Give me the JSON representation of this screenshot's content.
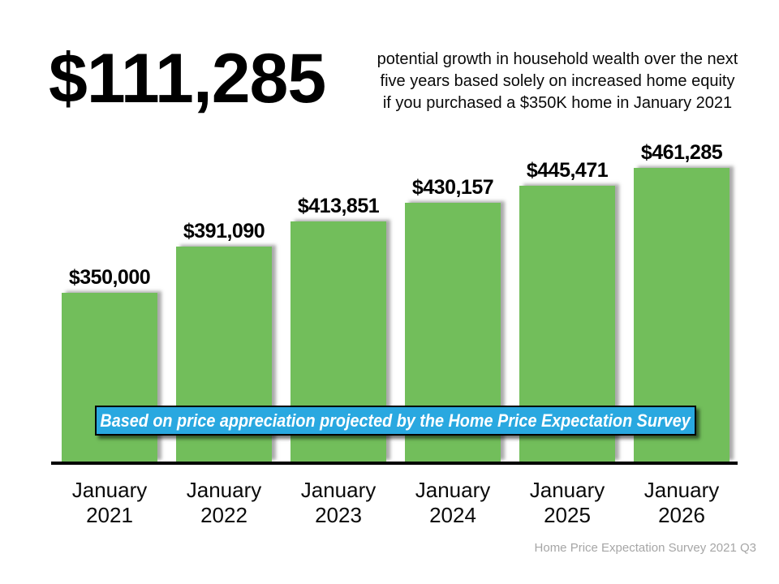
{
  "headline": {
    "amount": "$111,285",
    "description_lines": [
      "potential growth in household wealth over the next",
      "five years based solely on increased home equity",
      "if you purchased a $350K home in January 2021"
    ]
  },
  "chart_data": {
    "type": "bar",
    "categories": [
      "January 2021",
      "January 2022",
      "January 2023",
      "January 2024",
      "January 2025",
      "January 2026"
    ],
    "values": [
      350000,
      391090,
      413851,
      430157,
      445471,
      461285
    ],
    "value_labels": [
      "$350,000",
      "$391,090",
      "$413,851",
      "$430,157",
      "$445,471",
      "$461,285"
    ],
    "title": "",
    "xlabel": "",
    "ylabel": "",
    "ylim": [
      200000,
      470000
    ],
    "grid": false,
    "legend": false,
    "bar_color": "#72BE5B",
    "annotation": "Based on price appreciation projected by the Home Price Expectation Survey"
  },
  "banner": {
    "bg_color": "#29A8E0",
    "border_color": "#000000",
    "text_color": "#FFFFFF"
  },
  "footer": {
    "credit": "Home Price Expectation Survey 2021 Q3",
    "color": "#A6A6A6"
  }
}
